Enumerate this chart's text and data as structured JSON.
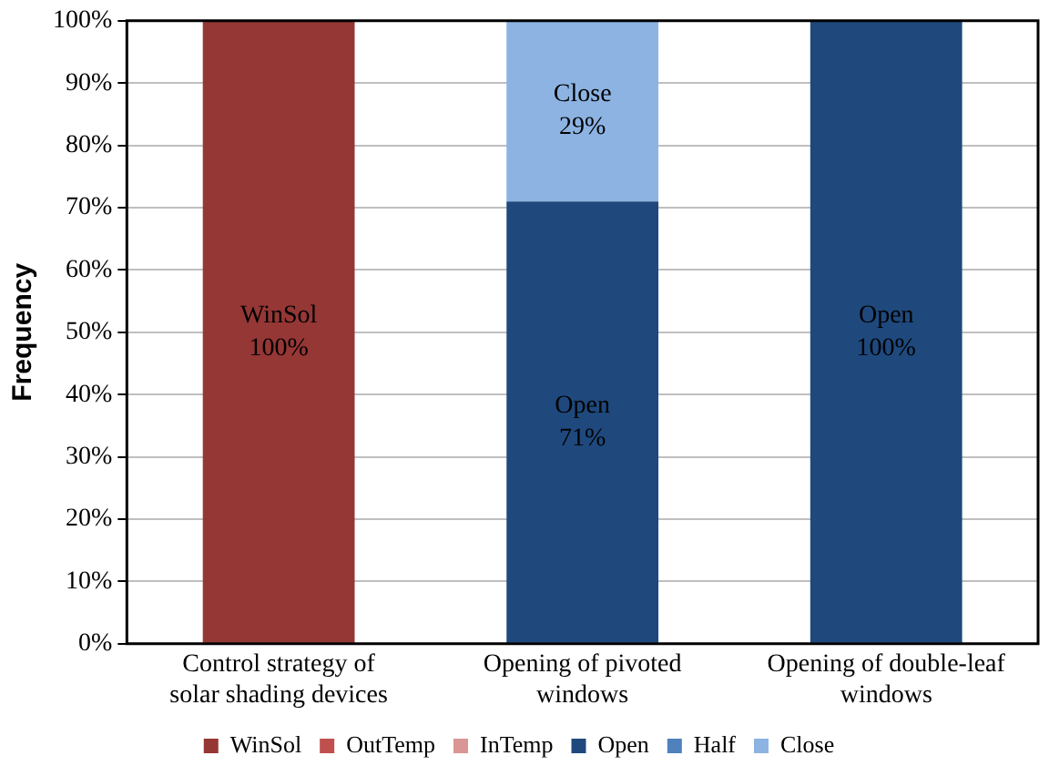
{
  "chart_data": {
    "type": "bar",
    "stacked": true,
    "ylabel": "Frequency",
    "categories": [
      "Control strategy of solar shading devices",
      "Opening of pivoted windows",
      "Opening of double-leaf windows"
    ],
    "series": [
      {
        "name": "WinSol",
        "color": "#953735",
        "values": [
          100,
          0,
          0
        ],
        "value_labels": [
          "100%",
          null,
          null
        ]
      },
      {
        "name": "OutTemp",
        "color": "#c0504d",
        "values": [
          0,
          0,
          0
        ]
      },
      {
        "name": "InTemp",
        "color": "#d99694",
        "values": [
          0,
          0,
          0
        ]
      },
      {
        "name": "Open",
        "color": "#1f497d",
        "values": [
          0,
          71,
          100
        ],
        "value_labels": [
          null,
          "71%",
          "100%"
        ]
      },
      {
        "name": "Half",
        "color": "#4f81bd",
        "values": [
          0,
          0,
          0
        ]
      },
      {
        "name": "Close",
        "color": "#8db3e2",
        "values": [
          0,
          29,
          0
        ],
        "value_labels": [
          null,
          "29%",
          null
        ]
      }
    ],
    "ylim": [
      0,
      100
    ],
    "yticks": [
      {
        "value": 0,
        "label": "0%"
      },
      {
        "value": 10,
        "label": "10%"
      },
      {
        "value": 20,
        "label": "20%"
      },
      {
        "value": 30,
        "label": "30%"
      },
      {
        "value": 40,
        "label": "40%"
      },
      {
        "value": 50,
        "label": "50%"
      },
      {
        "value": 60,
        "label": "60%"
      },
      {
        "value": 70,
        "label": "70%"
      },
      {
        "value": 80,
        "label": "80%"
      },
      {
        "value": 90,
        "label": "90%"
      },
      {
        "value": 100,
        "label": "100%"
      }
    ],
    "grid": "y",
    "legend": "bottom"
  }
}
